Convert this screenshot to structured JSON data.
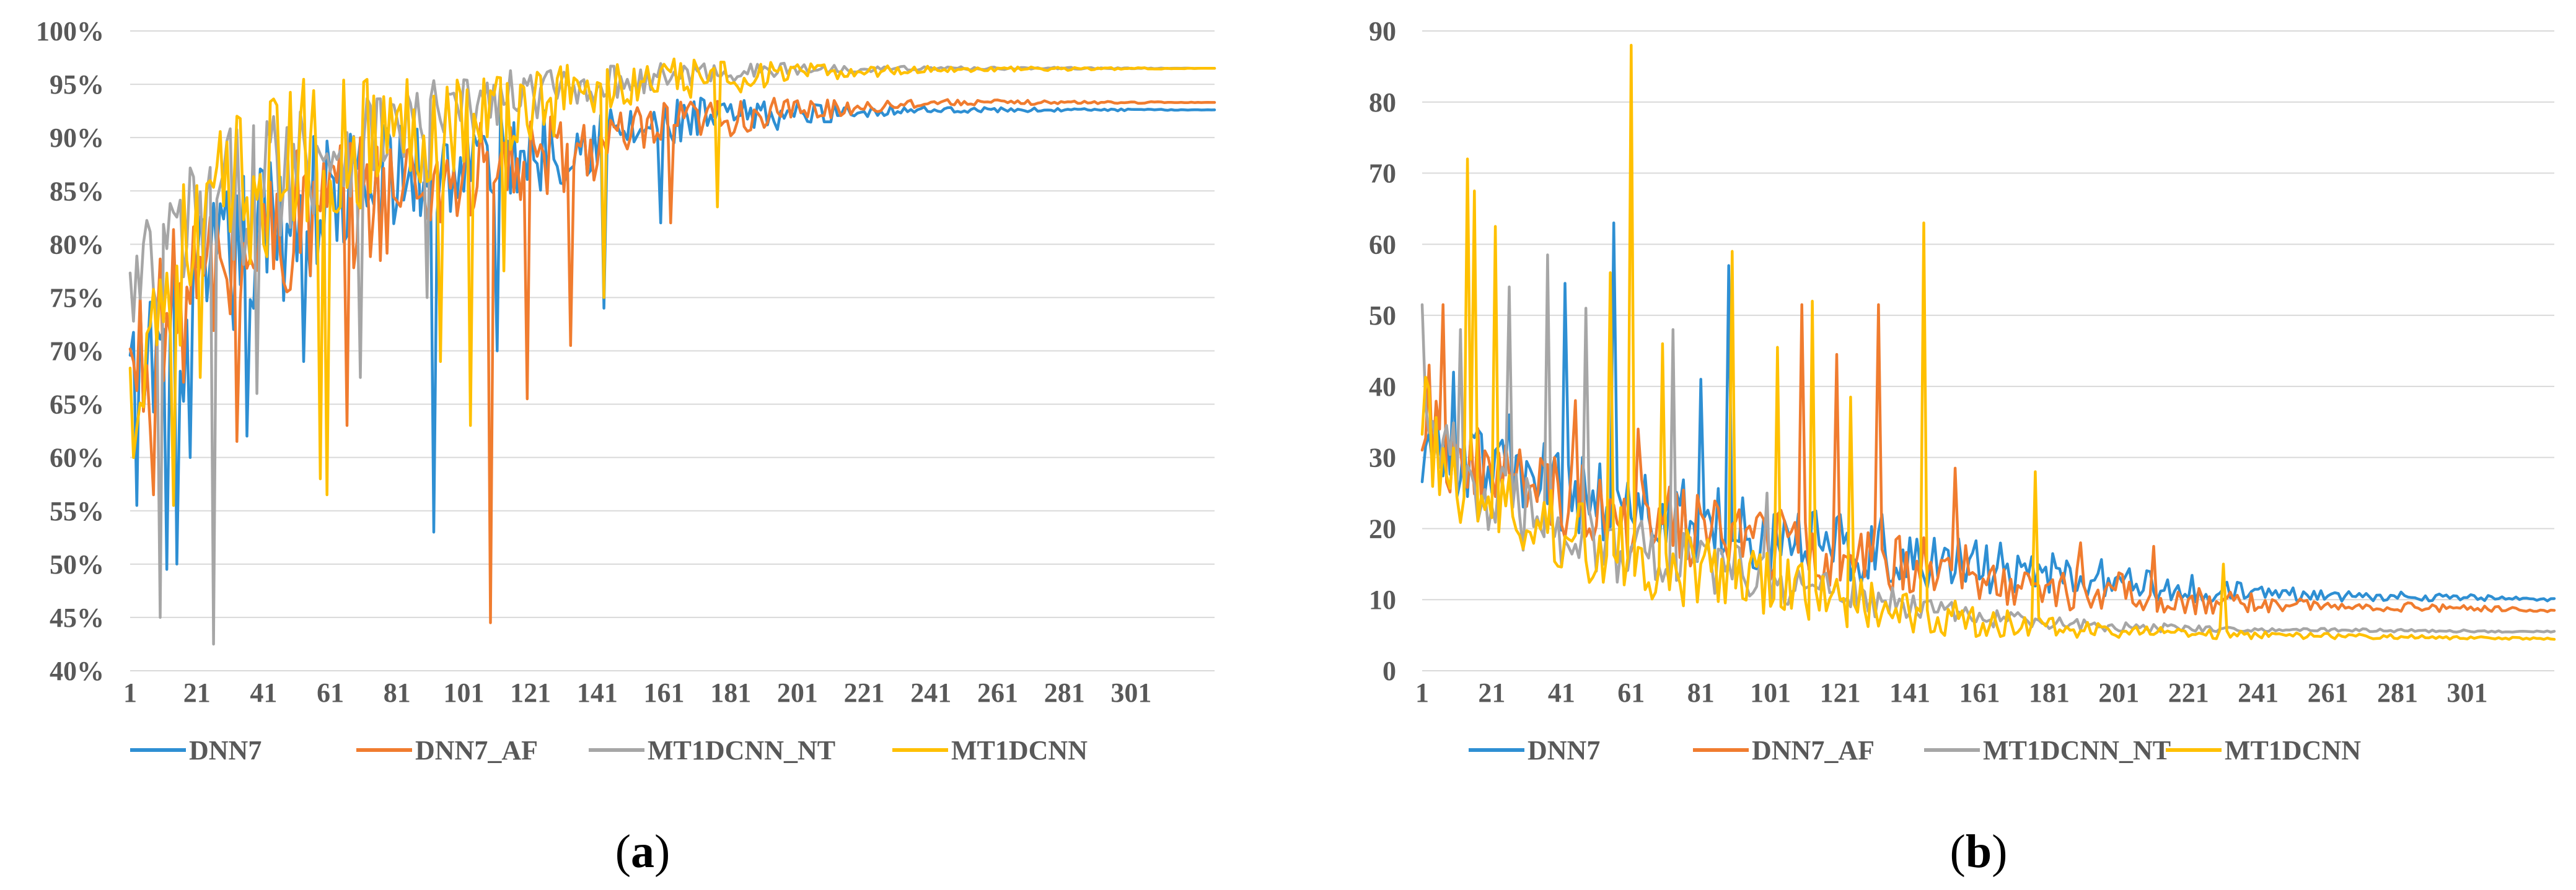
{
  "colors": {
    "DNN7": "#2e8fd3",
    "DNN7_AF": "#f07c2f",
    "MT1DCNN_NT": "#a6a6a6",
    "MT1DCNN": "#ffc000"
  },
  "chart_data": [
    {
      "type": "line",
      "panel": "a",
      "caption_letter": "a",
      "title": "",
      "xlabel": "",
      "ylabel": "",
      "x_count": 326,
      "x_ticks": [
        "1",
        "21",
        "41",
        "61",
        "81",
        "101",
        "121",
        "141",
        "161",
        "181",
        "201",
        "221",
        "241",
        "261",
        "281",
        "301"
      ],
      "y_ticks": [
        "40%",
        "45%",
        "50%",
        "55%",
        "60%",
        "65%",
        "70%",
        "75%",
        "80%",
        "85%",
        "90%",
        "95%",
        "100%"
      ],
      "ylim": [
        40,
        100
      ],
      "legend": [
        "DNN7",
        "DNN7_AF",
        "MT1DCNN_NT",
        "MT1DCNN"
      ],
      "series": [
        {
          "name": "DNN7",
          "key": "DNN7",
          "base": [
            [
              1,
              67
            ],
            [
              5,
              68
            ],
            [
              15,
              72
            ],
            [
              30,
              78
            ],
            [
              50,
              83
            ],
            [
              80,
              86
            ],
            [
              110,
              88
            ],
            [
              140,
              90
            ],
            [
              170,
              91.5
            ],
            [
              200,
              92.2
            ],
            [
              230,
              92.6
            ],
            [
              326,
              92.6
            ]
          ],
          "amp": [
            [
              1,
              8
            ],
            [
              40,
              8
            ],
            [
              100,
              5
            ],
            [
              150,
              3
            ],
            [
              200,
              1.2
            ],
            [
              236,
              0.3
            ],
            [
              326,
              0
            ]
          ],
          "spikes": [
            [
              3,
              55.5
            ],
            [
              12,
              49.5
            ],
            [
              15,
              50
            ],
            [
              19,
              60
            ],
            [
              36,
              62
            ],
            [
              53,
              69
            ],
            [
              92,
              53
            ],
            [
              111,
              70
            ],
            [
              160,
              82
            ],
            [
              143,
              74
            ]
          ],
          "final": 92.6
        },
        {
          "name": "DNN7_AF",
          "key": "DNN7_AF",
          "base": [
            [
              1,
              67
            ],
            [
              5,
              70
            ],
            [
              15,
              74
            ],
            [
              30,
              78
            ],
            [
              50,
              82
            ],
            [
              80,
              85
            ],
            [
              110,
              87
            ],
            [
              140,
              89
            ],
            [
              170,
              91.5
            ],
            [
              200,
              92.5
            ],
            [
              240,
              93.3
            ],
            [
              326,
              93.3
            ]
          ],
          "amp": [
            [
              1,
              8
            ],
            [
              40,
              8
            ],
            [
              100,
              5
            ],
            [
              150,
              3
            ],
            [
              200,
              1.2
            ],
            [
              242,
              0.3
            ],
            [
              326,
              0
            ]
          ],
          "spikes": [
            [
              8,
              56.5
            ],
            [
              33,
              61.5
            ],
            [
              66,
              63
            ],
            [
              109,
              44.5
            ],
            [
              120,
              65.5
            ],
            [
              133,
              70.5
            ],
            [
              163,
              82
            ]
          ],
          "final": 93.3
        },
        {
          "name": "MT1DCNN_NT",
          "key": "MT1DCNN_NT",
          "base": [
            [
              1,
              74
            ],
            [
              5,
              76
            ],
            [
              15,
              80
            ],
            [
              30,
              84
            ],
            [
              50,
              88
            ],
            [
              80,
              91
            ],
            [
              110,
              93.5
            ],
            [
              140,
              95
            ],
            [
              170,
              96
            ],
            [
              200,
              96.4
            ],
            [
              230,
              96.5
            ],
            [
              326,
              96.5
            ]
          ],
          "amp": [
            [
              1,
              7
            ],
            [
              40,
              7
            ],
            [
              100,
              3
            ],
            [
              150,
              1.5
            ],
            [
              200,
              0.6
            ],
            [
              230,
              0.2
            ],
            [
              326,
              0
            ]
          ],
          "spikes": [
            [
              10,
              45
            ],
            [
              26,
              42.5
            ],
            [
              39,
              66
            ],
            [
              70,
              67.5
            ],
            [
              90,
              75
            ]
          ],
          "final": 96.5
        },
        {
          "name": "MT1DCNN",
          "key": "MT1DCNN",
          "base": [
            [
              1,
              64
            ],
            [
              5,
              72
            ],
            [
              15,
              78
            ],
            [
              30,
              84
            ],
            [
              50,
              88
            ],
            [
              80,
              90.5
            ],
            [
              110,
              92.5
            ],
            [
              140,
              94.5
            ],
            [
              170,
              95.5
            ],
            [
              200,
              96
            ],
            [
              240,
              96.4
            ],
            [
              326,
              96.5
            ]
          ],
          "amp": [
            [
              1,
              8
            ],
            [
              40,
              8
            ],
            [
              100,
              5
            ],
            [
              150,
              2.5
            ],
            [
              200,
              1
            ],
            [
              240,
              0.3
            ],
            [
              326,
              0
            ]
          ],
          "spikes": [
            [
              2,
              60
            ],
            [
              14,
              55.5
            ],
            [
              22,
              67.5
            ],
            [
              58,
              58
            ],
            [
              60,
              56.5
            ],
            [
              94,
              69
            ],
            [
              103,
              63
            ],
            [
              113,
              77.5
            ],
            [
              143,
              75
            ],
            [
              177,
              83.5
            ]
          ],
          "final": 96.5
        }
      ]
    },
    {
      "type": "line",
      "panel": "b",
      "caption_letter": "b",
      "title": "",
      "xlabel": "",
      "ylabel": "",
      "x_count": 326,
      "x_ticks": [
        "1",
        "21",
        "41",
        "61",
        "81",
        "101",
        "121",
        "141",
        "161",
        "181",
        "201",
        "221",
        "241",
        "261",
        "281",
        "301"
      ],
      "y_ticks": [
        "0",
        "10",
        "20",
        "30",
        "40",
        "50",
        "60",
        "70",
        "80",
        "90"
      ],
      "ylim": [
        0,
        90
      ],
      "legend": [
        "DNN7",
        "DNN7_AF",
        "MT1DCNN_NT",
        "MT1DCNN"
      ],
      "series": [
        {
          "name": "DNN7",
          "key": "DNN7",
          "base": [
            [
              1,
              32
            ],
            [
              10,
              30
            ],
            [
              30,
              27
            ],
            [
              60,
              23
            ],
            [
              100,
              19
            ],
            [
              140,
              16
            ],
            [
              170,
              14
            ],
            [
              200,
              12.5
            ],
            [
              230,
              11
            ],
            [
              326,
              10
            ]
          ],
          "amp": [
            [
              1,
              6
            ],
            [
              60,
              6
            ],
            [
              120,
              5
            ],
            [
              200,
              3
            ],
            [
              250,
              1
            ],
            [
              326,
              0.2
            ]
          ],
          "spikes": [
            [
              10,
              42
            ],
            [
              26,
              36
            ],
            [
              42,
              54.5
            ],
            [
              56,
              63
            ],
            [
              81,
              41
            ],
            [
              89,
              57
            ],
            [
              133,
              22
            ]
          ],
          "final": 10
        },
        {
          "name": "DNN7_AF",
          "key": "DNN7_AF",
          "base": [
            [
              1,
              36
            ],
            [
              10,
              30
            ],
            [
              30,
              26
            ],
            [
              60,
              22
            ],
            [
              100,
              18
            ],
            [
              140,
              15
            ],
            [
              170,
              12.5
            ],
            [
              200,
              11
            ],
            [
              230,
              9.5
            ],
            [
              326,
              8.5
            ]
          ],
          "amp": [
            [
              1,
              6
            ],
            [
              60,
              6
            ],
            [
              120,
              5
            ],
            [
              200,
              3
            ],
            [
              250,
              1
            ],
            [
              326,
              0.2
            ]
          ],
          "spikes": [
            [
              3,
              43
            ],
            [
              7,
              51.5
            ],
            [
              45,
              38
            ],
            [
              63,
              34
            ],
            [
              110,
              51.5
            ],
            [
              120,
              44.5
            ],
            [
              132,
              51.5
            ],
            [
              154,
              28.5
            ],
            [
              190,
              18
            ],
            [
              211,
              17.5
            ]
          ],
          "final": 8.5
        },
        {
          "name": "MT1DCNN_NT",
          "key": "MT1DCNN_NT",
          "base": [
            [
              1,
              45
            ],
            [
              5,
              32
            ],
            [
              20,
              24
            ],
            [
              50,
              18
            ],
            [
              80,
              15
            ],
            [
              110,
              12
            ],
            [
              140,
              9
            ],
            [
              170,
              7
            ],
            [
              200,
              6.2
            ],
            [
              240,
              5.8
            ],
            [
              326,
              5.5
            ]
          ],
          "amp": [
            [
              1,
              6
            ],
            [
              60,
              5
            ],
            [
              120,
              3
            ],
            [
              180,
              1
            ],
            [
              240,
              0.3
            ],
            [
              326,
              0.1
            ]
          ],
          "spikes": [
            [
              1,
              51.5
            ],
            [
              12,
              48
            ],
            [
              26,
              54
            ],
            [
              37,
              58.5
            ],
            [
              48,
              51
            ],
            [
              73,
              48
            ],
            [
              100,
              25
            ]
          ],
          "final": 5.5
        },
        {
          "name": "MT1DCNN",
          "key": "MT1DCNN",
          "base": [
            [
              1,
              38
            ],
            [
              5,
              30
            ],
            [
              20,
              23
            ],
            [
              50,
              18
            ],
            [
              80,
              14
            ],
            [
              110,
              11
            ],
            [
              140,
              8
            ],
            [
              170,
              6.5
            ],
            [
              200,
              5.5
            ],
            [
              240,
              5
            ],
            [
              326,
              4.5
            ]
          ],
          "amp": [
            [
              1,
              7
            ],
            [
              60,
              6
            ],
            [
              120,
              4
            ],
            [
              180,
              1.5
            ],
            [
              240,
              0.5
            ],
            [
              326,
              0.1
            ]
          ],
          "spikes": [
            [
              14,
              72
            ],
            [
              16,
              67.5
            ],
            [
              22,
              62.5
            ],
            [
              55,
              56
            ],
            [
              61,
              88
            ],
            [
              70,
              46
            ],
            [
              90,
              59
            ],
            [
              103,
              45.5
            ],
            [
              113,
              52
            ],
            [
              124,
              38.5
            ],
            [
              145,
              63
            ],
            [
              177,
              28
            ],
            [
              231,
              15
            ]
          ],
          "final": 4.5
        }
      ]
    }
  ]
}
